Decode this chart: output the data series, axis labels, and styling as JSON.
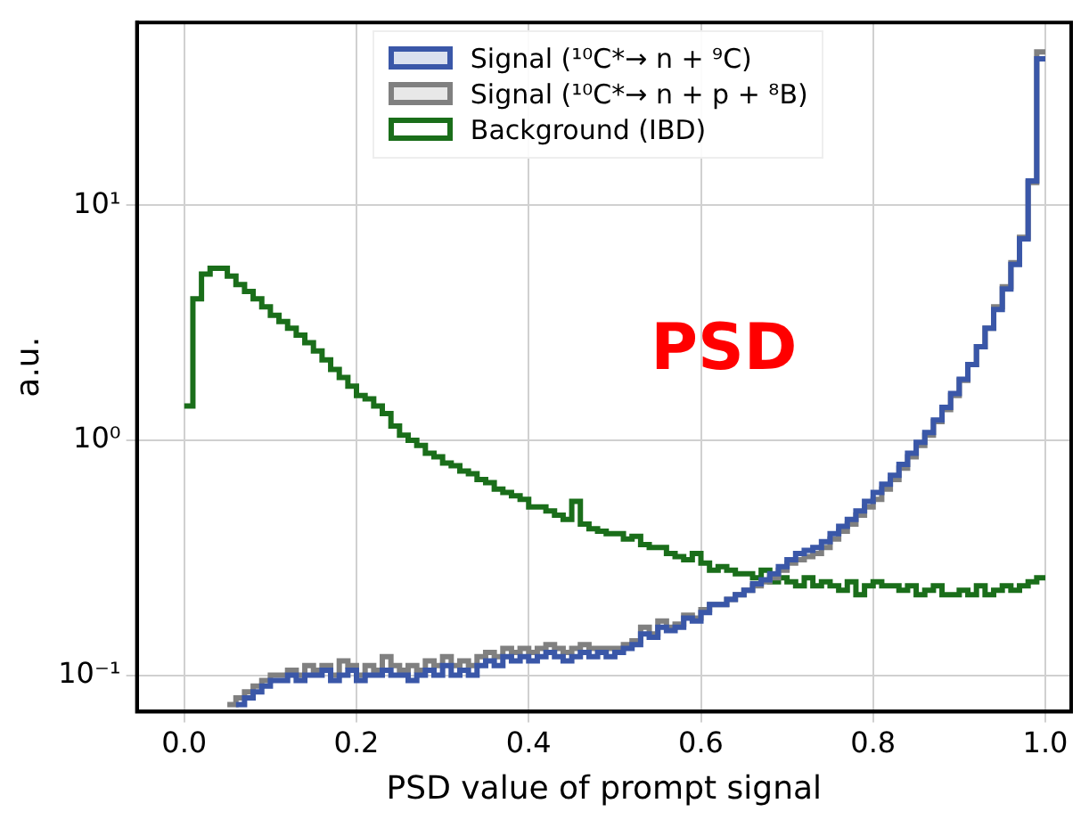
{
  "chart_data": {
    "type": "histogram",
    "xlabel": "PSD value of prompt signal",
    "ylabel": "a.u.",
    "log": "y",
    "grid": true,
    "legend": "top",
    "annotations": [
      "PSD"
    ],
    "xlim": [
      -0.055,
      1.03
    ],
    "ylim": [
      0.07,
      60
    ],
    "xticks": [
      {
        "value": 0,
        "label": "0.0"
      },
      {
        "value": 0.2,
        "label": "0.2"
      },
      {
        "value": 0.4,
        "label": "0.4"
      },
      {
        "value": 0.6,
        "label": "0.6"
      },
      {
        "value": 0.8,
        "label": "0.8"
      },
      {
        "value": 1,
        "label": "1.0"
      }
    ],
    "yticks": [
      {
        "value": 0.1,
        "label": "10⁻¹"
      },
      {
        "value": 1,
        "label": "10⁰"
      },
      {
        "value": 10,
        "label": "10¹"
      }
    ],
    "bins": [
      0,
      0.01,
      0.02,
      0.03,
      0.04,
      0.05,
      0.06,
      0.07,
      0.08,
      0.09,
      0.1,
      0.11,
      0.12,
      0.13,
      0.14,
      0.15,
      0.16,
      0.17,
      0.18,
      0.19,
      0.2,
      0.21,
      0.22,
      0.23,
      0.24,
      0.25,
      0.26,
      0.27,
      0.28,
      0.29,
      0.3,
      0.31,
      0.32,
      0.33,
      0.34,
      0.35,
      0.36,
      0.37,
      0.38,
      0.39,
      0.4,
      0.41,
      0.42,
      0.43,
      0.44,
      0.45,
      0.46,
      0.47,
      0.48,
      0.49,
      0.5,
      0.51,
      0.52,
      0.53,
      0.54,
      0.55,
      0.56,
      0.57,
      0.58,
      0.59,
      0.6,
      0.61,
      0.62,
      0.63,
      0.64,
      0.65,
      0.66,
      0.67,
      0.68,
      0.69,
      0.7,
      0.71,
      0.72,
      0.73,
      0.74,
      0.75,
      0.76,
      0.77,
      0.78,
      0.79,
      0.8,
      0.81,
      0.82,
      0.83,
      0.84,
      0.85,
      0.86,
      0.87,
      0.88,
      0.89,
      0.9,
      0.91,
      0.92,
      0.93,
      0.94,
      0.95,
      0.96,
      0.97,
      0.98,
      0.99,
      1
    ],
    "series": [
      {
        "name": "Signal (¹⁰C*→ n + ⁹C)",
        "color": "#3a57a8",
        "bins": [
          0.06,
          0.07,
          0.08,
          0.09,
          0.1,
          0.11,
          0.12,
          0.13,
          0.14,
          0.15,
          0.16,
          0.17,
          0.18,
          0.19,
          0.2,
          0.21,
          0.22,
          0.23,
          0.24,
          0.25,
          0.26,
          0.27,
          0.28,
          0.29,
          0.3,
          0.31,
          0.32,
          0.33,
          0.34,
          0.35,
          0.36,
          0.37,
          0.38,
          0.39,
          0.4,
          0.41,
          0.42,
          0.43,
          0.44,
          0.45,
          0.46,
          0.47,
          0.48,
          0.49,
          0.5,
          0.51,
          0.52,
          0.53,
          0.54,
          0.55,
          0.56,
          0.57,
          0.58,
          0.59,
          0.6,
          0.61,
          0.62,
          0.63,
          0.64,
          0.65,
          0.66,
          0.67,
          0.68,
          0.69,
          0.7,
          0.71,
          0.72,
          0.73,
          0.74,
          0.75,
          0.76,
          0.77,
          0.78,
          0.79,
          0.8,
          0.81,
          0.82,
          0.83,
          0.84,
          0.85,
          0.86,
          0.87,
          0.88,
          0.89,
          0.9,
          0.91,
          0.92,
          0.93,
          0.94,
          0.95,
          0.96,
          0.97,
          0.98,
          0.99,
          1
        ],
        "values": [
          0.075,
          0.08,
          0.085,
          0.09,
          0.095,
          0.095,
          0.1,
          0.095,
          0.1,
          0.1,
          0.105,
          0.095,
          0.1,
          0.105,
          0.095,
          0.1,
          0.1,
          0.105,
          0.1,
          0.1,
          0.095,
          0.1,
          0.105,
          0.1,
          0.11,
          0.1,
          0.105,
          0.1,
          0.11,
          0.115,
          0.11,
          0.12,
          0.115,
          0.12,
          0.115,
          0.12,
          0.125,
          0.12,
          0.115,
          0.12,
          0.125,
          0.12,
          0.125,
          0.12,
          0.125,
          0.13,
          0.135,
          0.15,
          0.145,
          0.16,
          0.155,
          0.16,
          0.175,
          0.17,
          0.185,
          0.2,
          0.2,
          0.21,
          0.22,
          0.23,
          0.245,
          0.255,
          0.27,
          0.29,
          0.31,
          0.33,
          0.34,
          0.35,
          0.37,
          0.4,
          0.43,
          0.46,
          0.5,
          0.55,
          0.6,
          0.65,
          0.71,
          0.79,
          0.88,
          0.98,
          1.08,
          1.22,
          1.38,
          1.58,
          1.82,
          2.1,
          2.5,
          3.0,
          3.6,
          4.4,
          5.6,
          7.2,
          12.7,
          42
        ]
      },
      {
        "name": "Signal (¹⁰C*→ n + p + ⁸B)",
        "color": "#808080",
        "bins": [
          0.05,
          0.06,
          0.07,
          0.08,
          0.09,
          0.1,
          0.11,
          0.12,
          0.13,
          0.14,
          0.15,
          0.16,
          0.17,
          0.18,
          0.19,
          0.2,
          0.21,
          0.22,
          0.23,
          0.24,
          0.25,
          0.26,
          0.27,
          0.28,
          0.29,
          0.3,
          0.31,
          0.32,
          0.33,
          0.34,
          0.35,
          0.36,
          0.37,
          0.38,
          0.39,
          0.4,
          0.41,
          0.42,
          0.43,
          0.44,
          0.45,
          0.46,
          0.47,
          0.48,
          0.49,
          0.5,
          0.51,
          0.52,
          0.53,
          0.54,
          0.55,
          0.56,
          0.57,
          0.58,
          0.59,
          0.6,
          0.61,
          0.62,
          0.63,
          0.64,
          0.65,
          0.66,
          0.67,
          0.68,
          0.69,
          0.7,
          0.71,
          0.72,
          0.73,
          0.74,
          0.75,
          0.76,
          0.77,
          0.78,
          0.79,
          0.8,
          0.81,
          0.82,
          0.83,
          0.84,
          0.85,
          0.86,
          0.87,
          0.88,
          0.89,
          0.9,
          0.91,
          0.92,
          0.93,
          0.94,
          0.95,
          0.96,
          0.97,
          0.98,
          0.99,
          1
        ],
        "values": [
          0.075,
          0.08,
          0.085,
          0.09,
          0.095,
          0.1,
          0.1,
          0.105,
          0.1,
          0.11,
          0.105,
          0.11,
          0.1,
          0.115,
          0.11,
          0.1,
          0.11,
          0.105,
          0.12,
          0.11,
          0.105,
          0.11,
          0.105,
          0.115,
          0.11,
          0.12,
          0.11,
          0.115,
          0.11,
          0.12,
          0.125,
          0.12,
          0.13,
          0.125,
          0.13,
          0.125,
          0.13,
          0.135,
          0.13,
          0.125,
          0.13,
          0.135,
          0.13,
          0.13,
          0.13,
          0.13,
          0.135,
          0.14,
          0.16,
          0.15,
          0.17,
          0.16,
          0.165,
          0.18,
          0.175,
          0.19,
          0.2,
          0.2,
          0.21,
          0.22,
          0.23,
          0.24,
          0.25,
          0.26,
          0.28,
          0.3,
          0.31,
          0.32,
          0.33,
          0.35,
          0.38,
          0.41,
          0.44,
          0.48,
          0.52,
          0.56,
          0.62,
          0.68,
          0.76,
          0.85,
          0.95,
          1.05,
          1.2,
          1.35,
          1.55,
          1.8,
          2.1,
          2.5,
          3.0,
          3.7,
          4.5,
          5.7,
          7.3,
          12.5,
          45
        ]
      },
      {
        "name": "Background (IBD)",
        "color": "#1a6e1a",
        "values": [
          1.4,
          4.0,
          5.1,
          5.4,
          5.4,
          5.0,
          4.6,
          4.3,
          4.0,
          3.7,
          3.4,
          3.2,
          3.0,
          2.8,
          2.6,
          2.4,
          2.2,
          2.0,
          1.85,
          1.7,
          1.55,
          1.5,
          1.4,
          1.3,
          1.15,
          1.05,
          1.0,
          0.95,
          0.88,
          0.85,
          0.8,
          0.78,
          0.74,
          0.72,
          0.68,
          0.66,
          0.62,
          0.6,
          0.58,
          0.56,
          0.52,
          0.52,
          0.5,
          0.48,
          0.46,
          0.55,
          0.44,
          0.42,
          0.41,
          0.4,
          0.4,
          0.38,
          0.39,
          0.36,
          0.35,
          0.35,
          0.33,
          0.32,
          0.31,
          0.33,
          0.3,
          0.28,
          0.29,
          0.28,
          0.27,
          0.27,
          0.26,
          0.28,
          0.25,
          0.26,
          0.25,
          0.24,
          0.26,
          0.24,
          0.25,
          0.24,
          0.23,
          0.25,
          0.22,
          0.24,
          0.25,
          0.24,
          0.24,
          0.23,
          0.24,
          0.22,
          0.23,
          0.24,
          0.22,
          0.22,
          0.23,
          0.22,
          0.24,
          0.22,
          0.23,
          0.24,
          0.23,
          0.24,
          0.25,
          0.26
        ]
      }
    ]
  }
}
